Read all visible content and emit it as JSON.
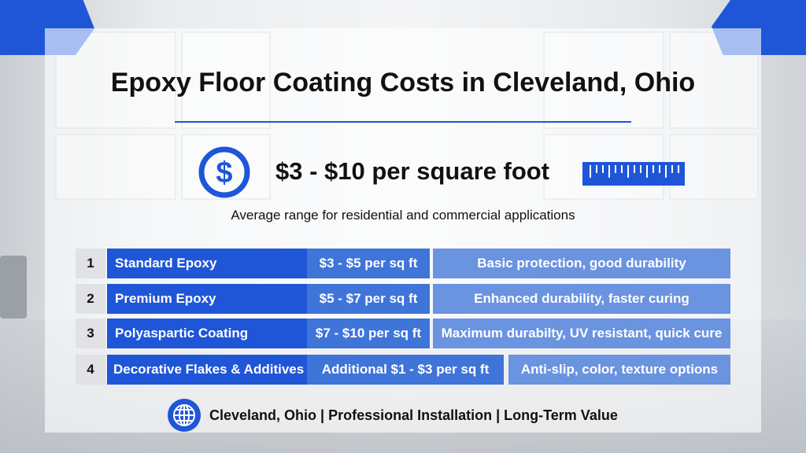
{
  "title": "Epoxy Floor Coating Costs in Cleveland, Ohio",
  "price_range": "$3 - $10 per square foot",
  "subtitle": "Average range for residential and commercial applications",
  "rows": [
    {
      "num": "1",
      "name": "Standard Epoxy",
      "price": "$3 - $5 per sq ft",
      "desc": "Basic protection, good durability"
    },
    {
      "num": "2",
      "name": "Premium Epoxy",
      "price": "$5 - $7 per sq ft",
      "desc": "Enhanced durability, faster curing"
    },
    {
      "num": "3",
      "name": "Polyaspartic Coating",
      "price": "$7 - $10 per sq ft",
      "desc": "Maximum durabilty, UV resistant, quick cure"
    },
    {
      "num": "4",
      "name": "Decorative Flakes & Additives",
      "price": "Additional $1 - $3 per sq ft",
      "desc": "Anti-slip, color, texture options"
    }
  ],
  "footer": "Cleveland, Ohio | Professional Installation | Long-Term Value",
  "colors": {
    "accent": "#1f56d8",
    "price_cell": "#3f74d9",
    "desc_cell": "#6a93e0"
  },
  "icons": {
    "price": "dollar-icon",
    "measure": "ruler-icon",
    "footer": "globe-icon"
  }
}
